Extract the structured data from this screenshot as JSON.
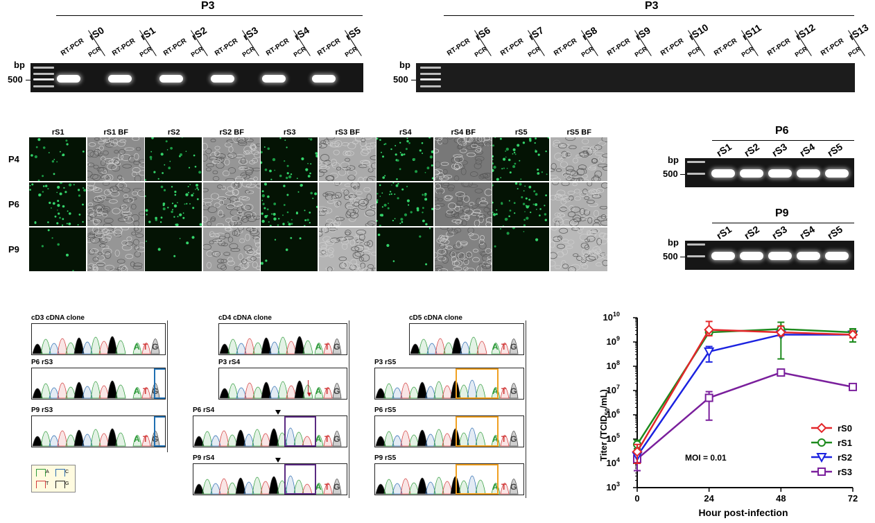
{
  "panel_a": {
    "left": {
      "title": "P3",
      "bp_label": "bp",
      "marker_label": "500",
      "groups": [
        {
          "sample": "rS0",
          "lanes": [
            "RT-PCR",
            "PCR"
          ]
        },
        {
          "sample": "rS1",
          "lanes": [
            "RT-PCR",
            "PCR"
          ]
        },
        {
          "sample": "rS2",
          "lanes": [
            "RT-PCR",
            "PCR"
          ]
        },
        {
          "sample": "rS3",
          "lanes": [
            "RT-PCR",
            "PCR"
          ]
        },
        {
          "sample": "rS4",
          "lanes": [
            "RT-PCR",
            "PCR"
          ]
        },
        {
          "sample": "rS5",
          "lanes": [
            "RT-PCR",
            "PCR"
          ]
        }
      ]
    },
    "right": {
      "title": "P3",
      "bp_label": "bp",
      "marker_label": "500",
      "groups": [
        {
          "sample": "rS6",
          "lanes": [
            "RT-PCR",
            "PCR"
          ]
        },
        {
          "sample": "rS7",
          "lanes": [
            "RT-PCR",
            "PCR"
          ]
        },
        {
          "sample": "rS8",
          "lanes": [
            "RT-PCR",
            "PCR"
          ]
        },
        {
          "sample": "rS9",
          "lanes": [
            "RT-PCR",
            "PCR"
          ]
        },
        {
          "sample": "rS10",
          "lanes": [
            "RT-PCR",
            "PCR"
          ]
        },
        {
          "sample": "rS11",
          "lanes": [
            "RT-PCR",
            "PCR"
          ]
        },
        {
          "sample": "rS12",
          "lanes": [
            "RT-PCR",
            "PCR"
          ]
        },
        {
          "sample": "rS13",
          "lanes": [
            "RT-PCR",
            "PCR"
          ]
        }
      ]
    }
  },
  "panel_b": {
    "columns": [
      "rS1",
      "rS1 BF",
      "rS2",
      "rS2 BF",
      "rS3",
      "rS3 BF",
      "rS4",
      "rS4 BF",
      "rS5",
      "rS5 BF"
    ],
    "rows": [
      "P4",
      "P6",
      "P9"
    ]
  },
  "panel_c": {
    "gels": [
      {
        "title": "P6",
        "bp_label": "bp",
        "marker_label": "500",
        "lanes": [
          "rS1",
          "rS2",
          "rS3",
          "rS4",
          "rS5"
        ]
      },
      {
        "title": "P9",
        "bp_label": "bp",
        "marker_label": "500",
        "lanes": [
          "rS1",
          "rS2",
          "rS3",
          "rS4",
          "rS5"
        ]
      }
    ]
  },
  "panel_d": {
    "columns": [
      {
        "traces": [
          "cD3 cDNA clone",
          "P6 rS3",
          "P9 rS3"
        ]
      },
      {
        "traces": [
          "cD4 cDNA clone",
          "P3 rS4",
          "P6 rS4",
          "P9 rS4"
        ]
      },
      {
        "traces": [
          "cD5 cDNA clone",
          "P3 rS5",
          "P6 rS5",
          "P9 rS5"
        ]
      }
    ],
    "bases": [
      "A",
      "T",
      "G"
    ],
    "legend": [
      {
        "base": "A",
        "color": "#2e9a3a"
      },
      {
        "base": "C",
        "color": "#2a6bb0"
      },
      {
        "base": "T",
        "color": "#d23a3a"
      },
      {
        "base": "G",
        "color": "#222222"
      }
    ],
    "highlight_colors": {
      "rS3": "#1f6fb2",
      "rS4": "#5a2a82",
      "rS5": "#f0a020"
    }
  },
  "chart_data": {
    "type": "line",
    "xlabel": "Hour post-infection",
    "ylabel": "Titer (TCID50/mL)",
    "ylabel_main": "Titer (TCID",
    "ylabel_sub": "50",
    "ylabel_tail": "/mL)",
    "x": [
      0,
      24,
      48,
      72
    ],
    "x_ticks": [
      "0",
      "24",
      "48",
      "72"
    ],
    "y_scale": "log",
    "y_ticks": [
      {
        "base": "10",
        "exp": "10"
      },
      {
        "base": "10",
        "exp": "9"
      },
      {
        "base": "10",
        "exp": "8"
      },
      {
        "base": "10",
        "exp": "7"
      },
      {
        "base": "10",
        "exp": "6"
      },
      {
        "base": "10",
        "exp": "5"
      },
      {
        "base": "10",
        "exp": "4"
      },
      {
        "base": "10",
        "exp": "3"
      }
    ],
    "ylim": [
      1000,
      10000000000
    ],
    "annotation": "MOI = 0.01",
    "legend_position": "bottom-right",
    "series": [
      {
        "name": "rS0",
        "color": "#e3262a",
        "marker": "diamond",
        "values": [
          30000,
          3200000000,
          2500000000,
          2000000000
        ],
        "err_low": [
          10000,
          1800000000,
          1800000000,
          1500000000
        ],
        "err_high": [
          60000,
          7000000000,
          4500000000,
          2800000000
        ]
      },
      {
        "name": "rS1",
        "color": "#1d8a1d",
        "marker": "circle",
        "values": [
          60000,
          2500000000,
          3400000000,
          2500000000
        ],
        "err_low": [
          40000,
          2000000000,
          200000000,
          1000000000
        ],
        "err_high": [
          90000,
          3200000000,
          6500000000,
          3500000000
        ]
      },
      {
        "name": "rS2",
        "color": "#1b22e0",
        "marker": "triangle-down",
        "values": [
          20000,
          400000000,
          2000000000,
          2000000000
        ],
        "err_low": [
          10000,
          150000000,
          1800000000,
          1800000000
        ],
        "err_high": [
          40000,
          650000000,
          2200000000,
          2200000000
        ]
      },
      {
        "name": "rS3",
        "color": "#7a1f9c",
        "marker": "square",
        "values": [
          15000,
          5000000,
          55000000,
          14000000
        ],
        "err_low": [
          5000,
          600000,
          40000000,
          12000000
        ],
        "err_high": [
          25000,
          9000000,
          70000000,
          16000000
        ]
      }
    ]
  }
}
